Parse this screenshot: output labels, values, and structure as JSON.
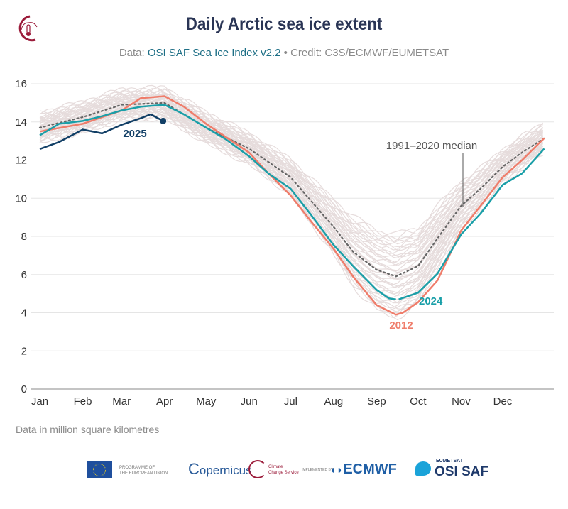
{
  "header": {
    "title": "Daily Arctic sea ice extent",
    "subtitle_prefix": "Data: ",
    "subtitle_source": "OSI SAF Sea Ice Index v2.2",
    "subtitle_sep": " • ",
    "subtitle_credit": "Credit: C3S/ECMWF/EUMETSAT",
    "logo": "Copernicus Climate Change Service"
  },
  "note": "Data in million square kilometres",
  "footer": {
    "eu_label_1": "PROGRAMME OF",
    "eu_label_2": "THE EUROPEAN UNION",
    "copernicus": "opernicus",
    "c3s_1": "Climate",
    "c3s_2": "Change Service",
    "implemented_by": "IMPLEMENTED BY",
    "ecmwf": "ECMWF",
    "eumetsat": "EUMETSAT",
    "osisaf": "OSI SAF"
  },
  "chart_data": {
    "type": "line",
    "title": "Daily Arctic sea ice extent",
    "ylabel": "",
    "xlabel": "",
    "unit": "million square kilometres",
    "ylim": [
      0,
      16
    ],
    "yticks": [
      "0",
      "2",
      "4",
      "6",
      "8",
      "10",
      "12",
      "14",
      "16"
    ],
    "xticks": [
      "Jan",
      "Feb",
      "Mar",
      "Apr",
      "May",
      "Jun",
      "Jul",
      "Aug",
      "Sep",
      "Oct",
      "Nov",
      "Dec"
    ],
    "grid": "horizontal",
    "colors": {
      "2025": "#123f66",
      "2024": "#1a9fa8",
      "2012": "#ef7d6b",
      "median": "#666666",
      "other_years": "#e6dcdc"
    },
    "series": [
      {
        "name": "2025",
        "x": [
          "01-01",
          "01-15",
          "02-01",
          "02-15",
          "03-01",
          "03-15",
          "03-22",
          "03-31"
        ],
        "values": [
          12.58,
          12.95,
          13.6,
          13.4,
          13.85,
          14.2,
          14.4,
          14.05
        ]
      },
      {
        "name": "2024",
        "x": [
          "01-01",
          "01-15",
          "02-01",
          "02-15",
          "03-01",
          "03-15",
          "04-01",
          "04-15",
          "05-01",
          "05-15",
          "06-01",
          "06-15",
          "07-01",
          "07-15",
          "08-01",
          "08-15",
          "09-01",
          "09-10",
          "09-15",
          null,
          "09-17",
          "10-01",
          "10-15",
          "11-01",
          "11-15",
          "12-01",
          "12-15",
          "12-31"
        ],
        "values": [
          13.3,
          13.9,
          14.05,
          14.3,
          14.6,
          14.8,
          14.9,
          14.4,
          13.7,
          13.1,
          12.2,
          11.3,
          10.5,
          9.2,
          7.55,
          6.45,
          5.2,
          4.75,
          4.7,
          null,
          4.7,
          5.05,
          6.05,
          8.1,
          9.2,
          10.7,
          11.3,
          12.6
        ]
      },
      {
        "name": "2012",
        "x": [
          "01-01",
          "02-01",
          "03-01",
          "03-15",
          "04-01",
          "04-15",
          "05-01",
          "06-01",
          "06-15",
          "07-01",
          "07-15",
          "08-01",
          "08-15",
          "09-01",
          "09-15",
          "09-20",
          "10-01",
          "10-15",
          "11-01",
          "11-15",
          "12-01",
          "12-15",
          "12-31"
        ],
        "values": [
          13.5,
          13.9,
          14.6,
          15.25,
          15.35,
          14.8,
          13.9,
          12.4,
          11.3,
          10.15,
          8.85,
          7.35,
          5.9,
          4.4,
          3.9,
          4.0,
          4.55,
          5.7,
          8.3,
          9.6,
          11.1,
          12.0,
          13.15
        ]
      },
      {
        "name": "1991–2020 median",
        "x": [
          "01-01",
          "02-01",
          "03-01",
          "04-01",
          "05-01",
          "06-01",
          "07-01",
          "08-01",
          "08-15",
          "09-01",
          "09-15",
          "10-01",
          "10-15",
          "11-01",
          "11-15",
          "12-01",
          "12-15",
          "12-31"
        ],
        "values": [
          13.7,
          14.25,
          14.9,
          15.0,
          13.7,
          12.6,
          11.1,
          8.5,
          7.2,
          6.25,
          5.9,
          6.45,
          7.9,
          9.6,
          10.5,
          11.65,
          12.4,
          13.15
        ]
      }
    ],
    "labels": {
      "2025": "2025",
      "2024": "2024",
      "2012": "2012",
      "median": "1991–2020 median"
    }
  }
}
